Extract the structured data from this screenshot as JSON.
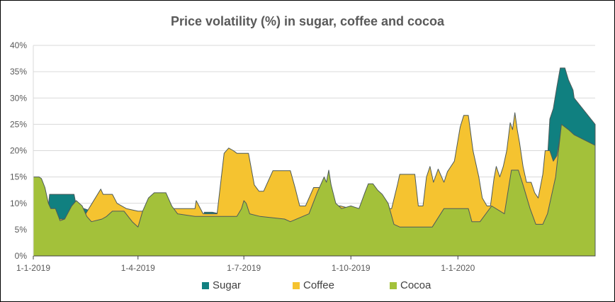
{
  "chart_data": {
    "type": "area",
    "title": "Price volatility (%) in sugar, coffee and cocoa",
    "xlabel": "",
    "ylabel": "",
    "ylim": [
      0,
      40
    ],
    "yticks": [
      0,
      5,
      10,
      15,
      20,
      25,
      30,
      35,
      40
    ],
    "ytick_labels": [
      "0%",
      "5%",
      "10%",
      "15%",
      "20%",
      "25%",
      "30%",
      "35%",
      "40%"
    ],
    "x_start": "2019-01-01",
    "x_end": "2020-04-28",
    "xticks": [
      "2019-01-01",
      "2019-04-01",
      "2019-07-01",
      "2019-10-01",
      "2020-01-01"
    ],
    "xtick_labels": [
      "1-1-2019",
      "1-4-2019",
      "1-7-2019",
      "1-10-2019",
      "1-1-2020"
    ],
    "grid": true,
    "legend_position": "bottom",
    "series": [
      {
        "name": "Sugar",
        "color": "#108080",
        "points": [
          [
            "2019-01-01",
            9.5
          ],
          [
            "2019-01-14",
            9.5
          ],
          [
            "2019-01-15",
            11.7
          ],
          [
            "2019-02-05",
            11.7
          ],
          [
            "2019-02-07",
            9.5
          ],
          [
            "2019-02-20",
            8.5
          ],
          [
            "2019-03-10",
            8.5
          ],
          [
            "2019-03-25",
            7.5
          ],
          [
            "2019-04-01",
            7.5
          ],
          [
            "2019-05-15",
            7.5
          ],
          [
            "2019-05-27",
            6.7
          ],
          [
            "2019-05-28",
            8.3
          ],
          [
            "2019-06-04",
            8.3
          ],
          [
            "2019-06-20",
            7.5
          ],
          [
            "2019-07-10",
            7.5
          ],
          [
            "2019-08-20",
            7.0
          ],
          [
            "2019-09-10",
            7.5
          ],
          [
            "2019-09-12",
            5.8
          ],
          [
            "2019-09-18",
            8.5
          ],
          [
            "2019-10-01",
            8.5
          ],
          [
            "2019-10-20",
            8.0
          ],
          [
            "2019-11-20",
            6.5
          ],
          [
            "2019-12-10",
            6.5
          ],
          [
            "2020-01-01",
            7.0
          ],
          [
            "2020-02-10",
            7.5
          ],
          [
            "2020-03-01",
            9.0
          ],
          [
            "2020-03-16",
            11.0
          ],
          [
            "2020-03-20",
            26.0
          ],
          [
            "2020-03-23",
            28.0
          ],
          [
            "2020-03-26",
            32.0
          ],
          [
            "2020-03-29",
            35.7
          ],
          [
            "2020-04-02",
            35.7
          ],
          [
            "2020-04-05",
            33.5
          ],
          [
            "2020-04-09",
            31.5
          ],
          [
            "2020-04-10",
            30.0
          ],
          [
            "2020-04-28",
            25.0
          ]
        ]
      },
      {
        "name": "Coffee",
        "color": "#F5C330",
        "points": [
          [
            "2019-01-01",
            8.0
          ],
          [
            "2019-01-20",
            7.0
          ],
          [
            "2019-02-01",
            7.0
          ],
          [
            "2019-02-10",
            8.0
          ],
          [
            "2019-02-15",
            8.0
          ],
          [
            "2019-02-28",
            12.7
          ],
          [
            "2019-03-02",
            11.7
          ],
          [
            "2019-03-10",
            11.7
          ],
          [
            "2019-03-14",
            10.0
          ],
          [
            "2019-03-22",
            9.0
          ],
          [
            "2019-04-01",
            8.5
          ],
          [
            "2019-04-15",
            8.5
          ],
          [
            "2019-05-01",
            9.0
          ],
          [
            "2019-05-20",
            9.0
          ],
          [
            "2019-05-21",
            10.5
          ],
          [
            "2019-05-27",
            8.0
          ],
          [
            "2019-06-08",
            8.0
          ],
          [
            "2019-06-14",
            19.5
          ],
          [
            "2019-06-18",
            20.5
          ],
          [
            "2019-06-22",
            20.0
          ],
          [
            "2019-06-25",
            19.5
          ],
          [
            "2019-07-05",
            19.5
          ],
          [
            "2019-07-10",
            13.5
          ],
          [
            "2019-07-14",
            12.3
          ],
          [
            "2019-07-18",
            12.3
          ],
          [
            "2019-07-26",
            16.2
          ],
          [
            "2019-08-10",
            16.2
          ],
          [
            "2019-08-14",
            13.0
          ],
          [
            "2019-08-18",
            9.5
          ],
          [
            "2019-08-23",
            9.5
          ],
          [
            "2019-08-30",
            13.0
          ],
          [
            "2019-09-05",
            13.0
          ],
          [
            "2019-09-10",
            11.5
          ],
          [
            "2019-09-17",
            9.5
          ],
          [
            "2019-09-22",
            9.5
          ],
          [
            "2019-10-01",
            9.0
          ],
          [
            "2019-10-10",
            9.0
          ],
          [
            "2019-10-15",
            7.0
          ],
          [
            "2019-10-25",
            9.0
          ],
          [
            "2019-11-05",
            9.0
          ],
          [
            "2019-11-10",
            13.5
          ],
          [
            "2019-11-12",
            15.5
          ],
          [
            "2019-11-25",
            15.5
          ],
          [
            "2019-11-28",
            9.5
          ],
          [
            "2019-12-02",
            9.5
          ],
          [
            "2019-12-05",
            15.0
          ],
          [
            "2019-12-08",
            17.0
          ],
          [
            "2019-12-11",
            14.0
          ],
          [
            "2019-12-15",
            16.5
          ],
          [
            "2019-12-20",
            14.0
          ],
          [
            "2019-12-23",
            16.0
          ],
          [
            "2019-12-29",
            18.0
          ],
          [
            "2020-01-03",
            24.5
          ],
          [
            "2020-01-06",
            26.7
          ],
          [
            "2020-01-10",
            26.7
          ],
          [
            "2020-01-14",
            20.0
          ],
          [
            "2020-01-19",
            15.0
          ],
          [
            "2020-01-22",
            11.0
          ],
          [
            "2020-01-26",
            9.5
          ],
          [
            "2020-01-29",
            9.5
          ],
          [
            "2020-02-01",
            14.7
          ],
          [
            "2020-02-03",
            17.0
          ],
          [
            "2020-02-06",
            15.0
          ],
          [
            "2020-02-09",
            17.0
          ],
          [
            "2020-02-12",
            20.0
          ],
          [
            "2020-02-15",
            25.3
          ],
          [
            "2020-02-17",
            24.0
          ],
          [
            "2020-02-19",
            27.2
          ],
          [
            "2020-02-21",
            24.0
          ],
          [
            "2020-02-23",
            21.5
          ],
          [
            "2020-02-26",
            17.0
          ],
          [
            "2020-02-29",
            14.0
          ],
          [
            "2020-03-04",
            14.0
          ],
          [
            "2020-03-07",
            12.0
          ],
          [
            "2020-03-10",
            11.0
          ],
          [
            "2020-03-14",
            15.5
          ],
          [
            "2020-03-16",
            20.0
          ],
          [
            "2020-03-20",
            20.0
          ],
          [
            "2020-03-23",
            18.0
          ],
          [
            "2020-03-26",
            19.0
          ],
          [
            "2020-03-30",
            24.0
          ],
          [
            "2020-04-03",
            22.7
          ],
          [
            "2020-04-08",
            22.7
          ],
          [
            "2020-04-10",
            20.5
          ],
          [
            "2020-04-28",
            20.5
          ]
        ]
      },
      {
        "name": "Cocoa",
        "color": "#A3C13A",
        "points": [
          [
            "2019-01-01",
            15.0
          ],
          [
            "2019-01-06",
            15.0
          ],
          [
            "2019-01-08",
            14.7
          ],
          [
            "2019-01-11",
            13.0
          ],
          [
            "2019-01-14",
            10.0
          ],
          [
            "2019-01-16",
            9.0
          ],
          [
            "2019-01-20",
            9.0
          ],
          [
            "2019-01-24",
            6.7
          ],
          [
            "2019-01-28",
            7.0
          ],
          [
            "2019-02-03",
            9.5
          ],
          [
            "2019-02-07",
            10.5
          ],
          [
            "2019-02-12",
            9.5
          ],
          [
            "2019-02-16",
            7.5
          ],
          [
            "2019-02-20",
            6.5
          ],
          [
            "2019-03-01",
            7.0
          ],
          [
            "2019-03-05",
            7.5
          ],
          [
            "2019-03-10",
            8.5
          ],
          [
            "2019-03-20",
            8.5
          ],
          [
            "2019-03-27",
            6.5
          ],
          [
            "2019-04-01",
            5.5
          ],
          [
            "2019-04-05",
            8.5
          ],
          [
            "2019-04-10",
            11.0
          ],
          [
            "2019-04-15",
            12.0
          ],
          [
            "2019-04-25",
            12.0
          ],
          [
            "2019-04-30",
            9.5
          ],
          [
            "2019-05-05",
            8.0
          ],
          [
            "2019-05-20",
            7.5
          ],
          [
            "2019-06-05",
            7.5
          ],
          [
            "2019-06-12",
            7.5
          ],
          [
            "2019-06-25",
            7.5
          ],
          [
            "2019-06-29",
            9.0
          ],
          [
            "2019-07-01",
            10.5
          ],
          [
            "2019-07-03",
            10.0
          ],
          [
            "2019-07-06",
            8.0
          ],
          [
            "2019-07-15",
            7.5
          ],
          [
            "2019-08-05",
            7.0
          ],
          [
            "2019-08-10",
            6.5
          ],
          [
            "2019-08-26",
            8.0
          ],
          [
            "2019-09-02",
            12.0
          ],
          [
            "2019-09-08",
            15.0
          ],
          [
            "2019-09-10",
            14.0
          ],
          [
            "2019-09-12",
            16.3
          ],
          [
            "2019-09-14",
            13.5
          ],
          [
            "2019-09-18",
            10.0
          ],
          [
            "2019-09-23",
            9.0
          ],
          [
            "2019-10-01",
            9.5
          ],
          [
            "2019-10-08",
            9.0
          ],
          [
            "2019-10-13",
            12.0
          ],
          [
            "2019-10-16",
            13.7
          ],
          [
            "2019-10-20",
            13.7
          ],
          [
            "2019-10-24",
            12.5
          ],
          [
            "2019-10-28",
            11.7
          ],
          [
            "2019-11-02",
            10.0
          ],
          [
            "2019-11-07",
            6.0
          ],
          [
            "2019-11-12",
            5.5
          ],
          [
            "2019-12-10",
            5.5
          ],
          [
            "2019-12-20",
            9.0
          ],
          [
            "2020-01-10",
            9.0
          ],
          [
            "2020-01-13",
            6.5
          ],
          [
            "2020-01-20",
            6.5
          ],
          [
            "2020-01-30",
            9.5
          ],
          [
            "2020-02-10",
            8.0
          ],
          [
            "2020-02-16",
            16.3
          ],
          [
            "2020-02-22",
            16.3
          ],
          [
            "2020-02-26",
            13.5
          ],
          [
            "2020-03-03",
            9.0
          ],
          [
            "2020-03-08",
            6.0
          ],
          [
            "2020-03-14",
            6.0
          ],
          [
            "2020-03-18",
            8.0
          ],
          [
            "2020-03-25",
            15.0
          ],
          [
            "2020-03-30",
            25.0
          ],
          [
            "2020-04-05",
            24.0
          ],
          [
            "2020-04-10",
            23.0
          ],
          [
            "2020-04-28",
            21.0
          ]
        ]
      }
    ]
  }
}
